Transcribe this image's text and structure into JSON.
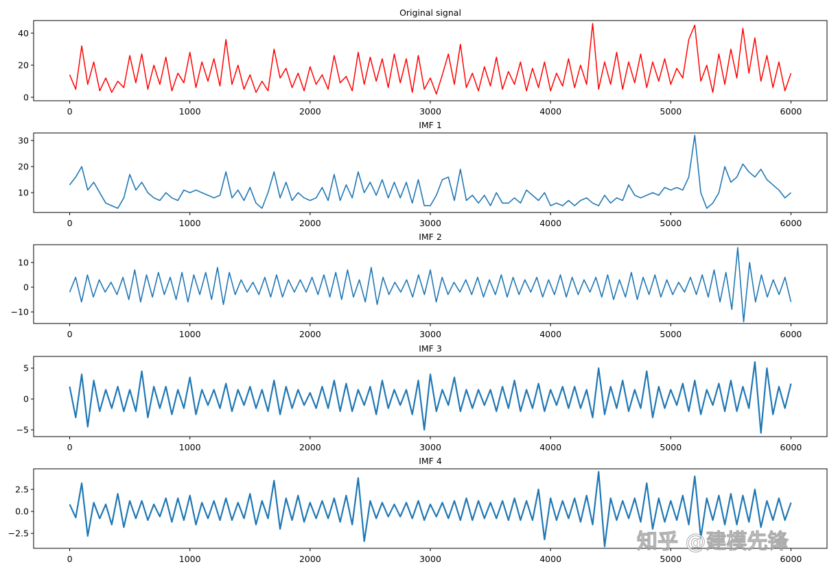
{
  "watermark": "知乎 @建模先锋",
  "chart_data": [
    {
      "type": "line",
      "title": "Original signal",
      "color": "#ff0000",
      "x_range": [
        0,
        6000
      ],
      "xlim": [
        -300,
        6300
      ],
      "ylim": [
        -2.2,
        47.8
      ],
      "xticks": [
        0,
        1000,
        2000,
        3000,
        4000,
        5000,
        6000
      ],
      "yticks": [
        0,
        20,
        40
      ],
      "values": [
        14,
        5,
        32,
        8,
        22,
        4,
        12,
        3,
        10,
        6,
        26,
        9,
        27,
        5,
        20,
        8,
        25,
        4,
        15,
        9,
        28,
        6,
        22,
        10,
        24,
        7,
        36,
        8,
        20,
        5,
        14,
        3,
        10,
        4,
        30,
        12,
        18,
        6,
        15,
        4,
        19,
        8,
        14,
        5,
        26,
        9,
        13,
        4,
        28,
        8,
        25,
        10,
        24,
        6,
        27,
        9,
        24,
        3,
        26,
        5,
        12,
        2,
        14,
        27,
        8,
        33,
        6,
        15,
        4,
        19,
        7,
        25,
        5,
        16,
        8,
        22,
        4,
        18,
        6,
        22,
        4,
        15,
        7,
        24,
        6,
        20,
        8,
        46,
        5,
        22,
        8,
        28,
        5,
        22,
        9,
        27,
        6,
        22,
        10,
        24,
        8,
        18,
        12,
        36,
        45,
        10,
        20,
        3,
        27,
        8,
        30,
        12,
        43,
        15,
        37,
        10,
        26,
        6,
        22,
        4,
        15
      ]
    },
    {
      "type": "line",
      "title": "IMF 1",
      "color": "#1f77b4",
      "x_range": [
        0,
        6000
      ],
      "xlim": [
        -300,
        6300
      ],
      "ylim": [
        2.4,
        32.9
      ],
      "xticks": [
        0,
        1000,
        2000,
        3000,
        4000,
        5000,
        6000
      ],
      "yticks": [
        10,
        20,
        30
      ],
      "values": [
        13,
        16,
        20,
        11,
        14,
        10,
        6,
        5,
        4,
        8,
        17,
        11,
        14,
        10,
        8,
        7,
        10,
        8,
        7,
        11,
        10,
        11,
        10,
        9,
        8,
        9,
        18,
        8,
        11,
        7,
        12,
        6,
        4,
        10,
        18,
        8,
        14,
        7,
        10,
        8,
        7,
        8,
        12,
        7,
        17,
        7,
        13,
        8,
        18,
        10,
        14,
        9,
        15,
        8,
        14,
        8,
        14,
        6,
        15,
        5,
        5,
        9,
        15,
        16,
        7,
        19,
        7,
        9,
        6,
        9,
        5,
        10,
        6,
        6,
        8,
        6,
        11,
        9,
        7,
        10,
        5,
        6,
        5,
        7,
        5,
        7,
        8,
        6,
        5,
        9,
        6,
        8,
        7,
        13,
        9,
        8,
        9,
        10,
        9,
        12,
        11,
        12,
        11,
        16,
        32,
        10,
        4,
        6,
        10,
        20,
        14,
        16,
        21,
        18,
        16,
        19,
        15,
        13,
        11,
        8,
        10
      ]
    },
    {
      "type": "line",
      "title": "IMF 2",
      "color": "#1f77b4",
      "x_range": [
        0,
        6000
      ],
      "xlim": [
        -300,
        6300
      ],
      "ylim": [
        -14.7,
        17.2
      ],
      "xticks": [
        0,
        1000,
        2000,
        3000,
        4000,
        5000,
        6000
      ],
      "yticks": [
        -10,
        0,
        10
      ],
      "values": [
        -2,
        4,
        -6,
        5,
        -4,
        3,
        -2,
        2,
        -3,
        4,
        -5,
        7,
        -6,
        5,
        -4,
        6,
        -3,
        4,
        -5,
        6,
        -6,
        5,
        -3,
        6,
        -5,
        8,
        -7,
        6,
        -3,
        3,
        -2,
        2,
        -3,
        4,
        -4,
        5,
        -4,
        3,
        -2,
        3,
        -2,
        4,
        -3,
        5,
        -4,
        6,
        -5,
        7,
        -4,
        3,
        -6,
        8,
        -7,
        4,
        -3,
        2,
        -2,
        3,
        -4,
        5,
        -3,
        7,
        -6,
        4,
        -3,
        2,
        -2,
        3,
        -3,
        4,
        -4,
        3,
        -3,
        5,
        -4,
        4,
        -3,
        3,
        -2,
        4,
        -4,
        3,
        -3,
        5,
        -4,
        4,
        -3,
        3,
        -2,
        4,
        -4,
        5,
        -5,
        3,
        -4,
        6,
        -5,
        4,
        -3,
        5,
        -4,
        3,
        -3,
        2,
        -2,
        4,
        -3,
        5,
        -4,
        7,
        -6,
        6,
        -9,
        16,
        -14,
        10,
        -6,
        5,
        -4,
        3,
        -3,
        4,
        -6
      ]
    },
    {
      "type": "line",
      "title": "IMF 3",
      "color": "#1f77b4",
      "x_range": [
        0,
        6000
      ],
      "xlim": [
        -300,
        6300
      ],
      "ylim": [
        -6.1,
        6.9
      ],
      "xticks": [
        0,
        1000,
        2000,
        3000,
        4000,
        5000,
        6000
      ],
      "yticks": [
        -5,
        0,
        5
      ],
      "values": [
        2,
        -3,
        4,
        -4.5,
        3,
        -2,
        1.5,
        -1.5,
        2,
        -2,
        1.5,
        -2,
        4.5,
        -3,
        2,
        -1.5,
        2,
        -2.5,
        1.5,
        -1.5,
        3.5,
        -2.5,
        1.5,
        -1,
        1.5,
        -1.5,
        2.5,
        -2,
        1.5,
        -1,
        2,
        -1.5,
        1.5,
        -2,
        3,
        -2.5,
        2,
        -1.5,
        1.5,
        -1,
        1,
        -1.5,
        2,
        -1.5,
        3,
        -2,
        2.5,
        -2,
        1.5,
        -1,
        2,
        -2.5,
        3,
        -1.5,
        1.5,
        -1,
        1.5,
        -2.5,
        3,
        -5,
        4,
        -2,
        1.5,
        -1,
        3.5,
        -2,
        1.5,
        -1.5,
        1.5,
        -1,
        1.5,
        -2,
        2,
        -1.5,
        3,
        -2,
        1.5,
        -1.5,
        2.5,
        -2,
        1.5,
        -1,
        2,
        -1.5,
        2,
        -1.5,
        1.5,
        -3,
        5,
        -2.5,
        2,
        -1.5,
        3,
        -2,
        1.5,
        -1.5,
        4.5,
        -3,
        2,
        -1.5,
        1.5,
        -1,
        2.5,
        -2,
        3,
        -2.5,
        1.5,
        -1,
        2.5,
        -2,
        3,
        -2,
        2,
        -1.5,
        6,
        -5.5,
        5,
        -2.5,
        2,
        -1.5,
        2.5
      ]
    },
    {
      "type": "line",
      "title": "IMF 4",
      "color": "#1f77b4",
      "x_range": [
        0,
        6000
      ],
      "xlim": [
        -300,
        6300
      ],
      "ylim": [
        -4.2,
        4.84
      ],
      "xticks": [
        0,
        1000,
        2000,
        3000,
        4000,
        5000,
        6000
      ],
      "yticks": [
        -2.5,
        0.0,
        2.5
      ],
      "values": [
        0.8,
        -0.7,
        3.2,
        -2.8,
        1,
        -0.8,
        0.8,
        -1.5,
        2,
        -1.8,
        1.2,
        -0.8,
        1.2,
        -1,
        0.8,
        -0.6,
        1.5,
        -1.2,
        1.5,
        -1,
        1.8,
        -1.5,
        1,
        -0.8,
        1.2,
        -1,
        1.5,
        -1,
        1,
        -0.8,
        2,
        -1.5,
        1.2,
        -0.8,
        3.5,
        -2,
        1.5,
        -1,
        1.8,
        -1.2,
        1,
        -0.8,
        1.2,
        -0.8,
        1.5,
        -1.2,
        1.8,
        -1.5,
        3.8,
        -3.4,
        1.2,
        -0.8,
        1,
        -0.6,
        0.8,
        -0.6,
        1,
        -0.8,
        1.2,
        -1,
        0.8,
        -0.6,
        1,
        -0.8,
        1.2,
        -1,
        1.5,
        -1,
        1.2,
        -0.8,
        1,
        -0.8,
        1.2,
        -1,
        1.5,
        -1,
        1.2,
        -1,
        2.5,
        -3.2,
        1.5,
        -1,
        1.2,
        -0.8,
        1.5,
        -1.2,
        1.8,
        -1.5,
        4.5,
        -4,
        1.5,
        -1,
        1.2,
        -0.8,
        1.5,
        -1.2,
        3.2,
        -2,
        1.5,
        -1.2,
        1.2,
        -1,
        1.8,
        -1.5,
        4,
        -3,
        1.5,
        -1,
        1.8,
        -1.5,
        2,
        -1.5,
        1.8,
        -1.2,
        2.5,
        -1.8,
        1.2,
        -1,
        1.5,
        -1,
        1
      ]
    }
  ]
}
